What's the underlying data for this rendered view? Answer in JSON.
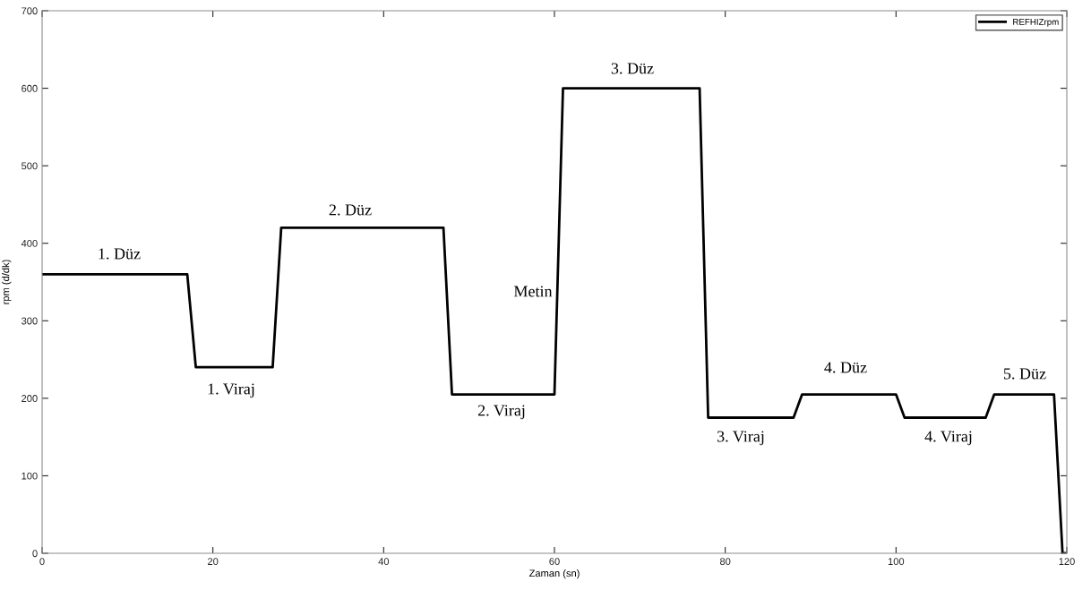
{
  "chart_data": {
    "type": "line",
    "xlabel": "Zaman (sn)",
    "ylabel": "rpm (d/dk)",
    "x": [
      0,
      17,
      18,
      27,
      28,
      47,
      48,
      60,
      61,
      77,
      78,
      88,
      89,
      100,
      101,
      110.5,
      111.5,
      118.5,
      119.5,
      120
    ],
    "series": [
      {
        "name": "REFHIZrpm",
        "color": "#000000",
        "values": [
          360,
          360,
          240,
          240,
          420,
          420,
          205,
          205,
          600,
          600,
          175,
          175,
          205,
          205,
          175,
          175,
          205,
          205,
          0,
          0
        ]
      }
    ],
    "xlim": [
      0,
      120
    ],
    "xticks": [
      0,
      20,
      40,
      60,
      80,
      100,
      120
    ],
    "ylim": [
      0,
      700
    ],
    "yticks": [
      0,
      100,
      200,
      300,
      400,
      500,
      600,
      700
    ],
    "grid": false,
    "legend": "top right",
    "marker": "none",
    "line_style": "solid",
    "annotations": [
      "1. Düz",
      "1. Viraj",
      "2. Düz",
      "2. Viraj",
      "Metin",
      "3. Düz",
      "3. Viraj",
      "4. Düz",
      "4. Viraj",
      "5. Düz"
    ]
  }
}
